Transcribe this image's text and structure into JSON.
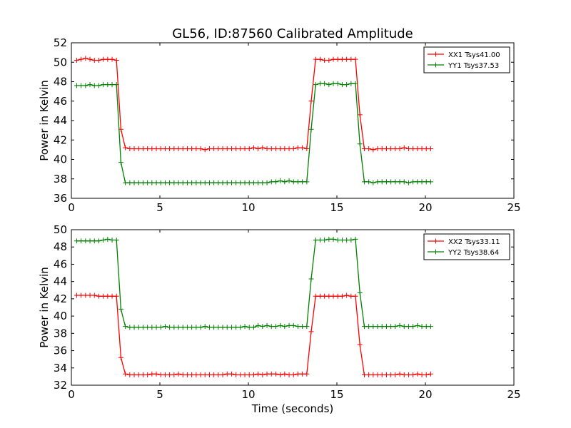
{
  "title": "GL56, ID:87560 Calibrated Amplitude",
  "xlabel": "Time (seconds)",
  "chart_data": [
    {
      "type": "line",
      "title": "GL56, ID:87560 Calibrated Amplitude",
      "ylabel": "Power in Kelvin",
      "xlabel": "",
      "xlim": [
        0,
        25
      ],
      "ylim": [
        36,
        52
      ],
      "xticks": [
        "0",
        "5",
        "10",
        "15",
        "20",
        "25"
      ],
      "yticks": [
        "36",
        "38",
        "40",
        "42",
        "44",
        "46",
        "48",
        "50",
        "52"
      ],
      "grid": false,
      "legend_position": "top-right",
      "x": [
        0.3,
        0.55,
        0.8,
        1.05,
        1.3,
        1.55,
        1.8,
        2.05,
        2.3,
        2.55,
        2.8,
        3.05,
        3.3,
        3.55,
        3.8,
        4.05,
        4.3,
        4.55,
        4.8,
        5.05,
        5.3,
        5.55,
        5.8,
        6.05,
        6.3,
        6.55,
        6.8,
        7.05,
        7.3,
        7.55,
        7.8,
        8.05,
        8.3,
        8.55,
        8.8,
        9.05,
        9.3,
        9.55,
        9.8,
        10.05,
        10.3,
        10.55,
        10.8,
        11.05,
        11.3,
        11.55,
        11.8,
        12.05,
        12.3,
        12.55,
        12.8,
        13.05,
        13.3,
        13.55,
        13.8,
        14.05,
        14.3,
        14.55,
        14.8,
        15.05,
        15.3,
        15.55,
        15.8,
        16.05,
        16.3,
        16.55,
        16.8,
        17.05,
        17.3,
        17.55,
        17.8,
        18.05,
        18.3,
        18.55,
        18.8,
        19.05,
        19.3,
        19.55,
        19.8,
        20.05,
        20.3
      ],
      "series": [
        {
          "name": "XX1 Tsys41.00",
          "color": "#ff0000",
          "values": [
            50.2,
            50.3,
            50.4,
            50.3,
            50.2,
            50.2,
            50.3,
            50.3,
            50.3,
            50.2,
            43.1,
            41.2,
            41.1,
            41.1,
            41.1,
            41.1,
            41.1,
            41.1,
            41.1,
            41.1,
            41.1,
            41.1,
            41.1,
            41.1,
            41.1,
            41.1,
            41.1,
            41.1,
            41.1,
            41.0,
            41.1,
            41.1,
            41.1,
            41.1,
            41.1,
            41.1,
            41.1,
            41.1,
            41.1,
            41.1,
            41.2,
            41.1,
            41.2,
            41.1,
            41.1,
            41.1,
            41.1,
            41.1,
            41.1,
            41.1,
            41.2,
            41.2,
            41.1,
            46.0,
            50.3,
            50.3,
            50.2,
            50.2,
            50.3,
            50.3,
            50.3,
            50.3,
            50.3,
            50.3,
            44.6,
            41.1,
            41.1,
            41.0,
            41.1,
            41.1,
            41.1,
            41.1,
            41.1,
            41.1,
            41.2,
            41.1,
            41.1,
            41.1,
            41.1,
            41.1,
            41.1
          ]
        },
        {
          "name": "YY1 Tsys37.53",
          "color": "#008000",
          "values": [
            47.6,
            47.6,
            47.6,
            47.7,
            47.6,
            47.6,
            47.7,
            47.7,
            47.7,
            47.7,
            39.7,
            37.6,
            37.6,
            37.6,
            37.6,
            37.6,
            37.6,
            37.6,
            37.6,
            37.6,
            37.6,
            37.6,
            37.6,
            37.6,
            37.6,
            37.6,
            37.6,
            37.6,
            37.6,
            37.6,
            37.6,
            37.6,
            37.6,
            37.6,
            37.6,
            37.6,
            37.6,
            37.6,
            37.6,
            37.6,
            37.6,
            37.6,
            37.6,
            37.6,
            37.7,
            37.7,
            37.8,
            37.7,
            37.8,
            37.7,
            37.7,
            37.7,
            37.7,
            43.1,
            47.7,
            47.8,
            47.8,
            47.7,
            47.8,
            47.8,
            47.7,
            47.7,
            47.8,
            47.8,
            41.6,
            37.7,
            37.7,
            37.6,
            37.7,
            37.7,
            37.7,
            37.7,
            37.7,
            37.7,
            37.7,
            37.6,
            37.7,
            37.7,
            37.7,
            37.7,
            37.7
          ]
        }
      ]
    },
    {
      "type": "line",
      "title": "",
      "ylabel": "Power in Kelvin",
      "xlabel": "Time (seconds)",
      "xlim": [
        0,
        25
      ],
      "ylim": [
        32,
        50
      ],
      "xticks": [
        "0",
        "5",
        "10",
        "15",
        "20",
        "25"
      ],
      "yticks": [
        "32",
        "34",
        "36",
        "38",
        "40",
        "42",
        "44",
        "46",
        "48",
        "50"
      ],
      "grid": false,
      "legend_position": "top-right",
      "x": [
        0.3,
        0.55,
        0.8,
        1.05,
        1.3,
        1.55,
        1.8,
        2.05,
        2.3,
        2.55,
        2.8,
        3.05,
        3.3,
        3.55,
        3.8,
        4.05,
        4.3,
        4.55,
        4.8,
        5.05,
        5.3,
        5.55,
        5.8,
        6.05,
        6.3,
        6.55,
        6.8,
        7.05,
        7.3,
        7.55,
        7.8,
        8.05,
        8.3,
        8.55,
        8.8,
        9.05,
        9.3,
        9.55,
        9.8,
        10.05,
        10.3,
        10.55,
        10.8,
        11.05,
        11.3,
        11.55,
        11.8,
        12.05,
        12.3,
        12.55,
        12.8,
        13.05,
        13.3,
        13.55,
        13.8,
        14.05,
        14.3,
        14.55,
        14.8,
        15.05,
        15.3,
        15.55,
        15.8,
        16.05,
        16.3,
        16.55,
        16.8,
        17.05,
        17.3,
        17.55,
        17.8,
        18.05,
        18.3,
        18.55,
        18.8,
        19.05,
        19.3,
        19.55,
        19.8,
        20.05,
        20.3
      ],
      "series": [
        {
          "name": "XX2 Tsys33.11",
          "color": "#ff0000",
          "values": [
            42.4,
            42.4,
            42.4,
            42.4,
            42.4,
            42.3,
            42.3,
            42.3,
            42.3,
            42.3,
            35.2,
            33.3,
            33.2,
            33.2,
            33.2,
            33.2,
            33.2,
            33.3,
            33.3,
            33.2,
            33.2,
            33.2,
            33.2,
            33.3,
            33.2,
            33.2,
            33.2,
            33.2,
            33.2,
            33.2,
            33.2,
            33.2,
            33.2,
            33.2,
            33.3,
            33.3,
            33.2,
            33.2,
            33.2,
            33.2,
            33.2,
            33.3,
            33.2,
            33.3,
            33.3,
            33.3,
            33.2,
            33.3,
            33.2,
            33.2,
            33.3,
            33.3,
            33.3,
            38.2,
            42.3,
            42.3,
            42.3,
            42.3,
            42.3,
            42.3,
            42.3,
            42.4,
            42.3,
            42.3,
            36.7,
            33.2,
            33.2,
            33.2,
            33.2,
            33.2,
            33.2,
            33.2,
            33.2,
            33.3,
            33.2,
            33.2,
            33.2,
            33.3,
            33.2,
            33.2,
            33.3
          ]
        },
        {
          "name": "YY2 Tsys38.64",
          "color": "#008000",
          "values": [
            48.7,
            48.7,
            48.7,
            48.7,
            48.7,
            48.7,
            48.8,
            48.9,
            48.8,
            48.8,
            40.8,
            38.8,
            38.7,
            38.7,
            38.7,
            38.7,
            38.7,
            38.7,
            38.7,
            38.7,
            38.8,
            38.7,
            38.7,
            38.7,
            38.7,
            38.7,
            38.7,
            38.7,
            38.7,
            38.8,
            38.7,
            38.7,
            38.7,
            38.7,
            38.7,
            38.7,
            38.7,
            38.7,
            38.8,
            38.7,
            38.7,
            38.9,
            38.8,
            38.9,
            38.8,
            38.8,
            38.9,
            38.8,
            38.9,
            38.9,
            38.8,
            38.8,
            38.8,
            44.3,
            48.8,
            48.8,
            48.8,
            48.9,
            48.9,
            48.8,
            48.8,
            48.8,
            48.8,
            48.9,
            42.7,
            38.8,
            38.8,
            38.8,
            38.8,
            38.8,
            38.8,
            38.8,
            38.8,
            38.9,
            38.8,
            38.8,
            38.8,
            38.9,
            38.8,
            38.8,
            38.8
          ]
        }
      ]
    }
  ]
}
